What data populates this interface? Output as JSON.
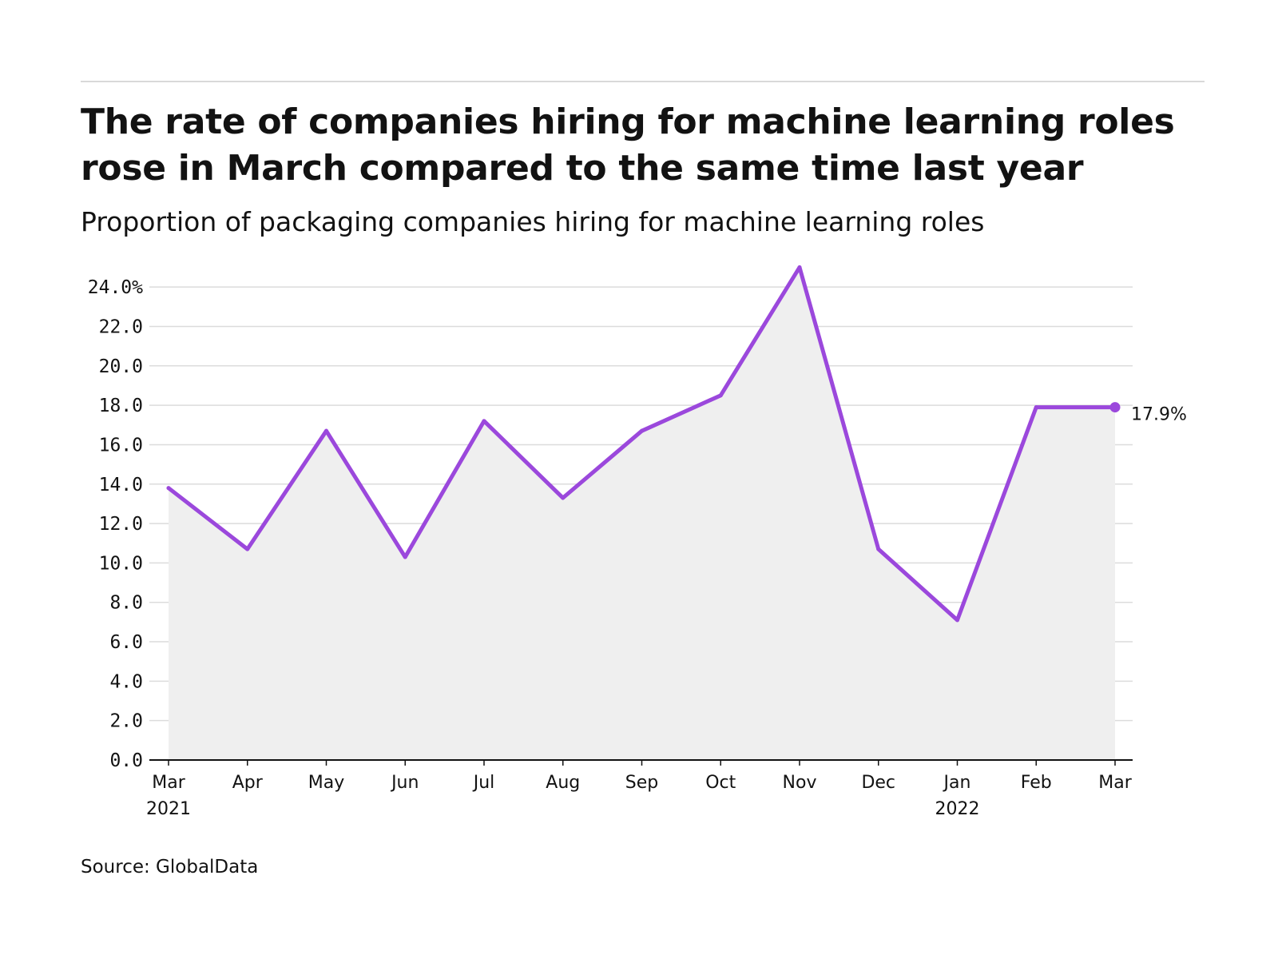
{
  "header": {
    "title": "The rate of companies hiring for machine learning roles rose in March compared to the same time last year",
    "subtitle": "Proportion of packaging companies hiring for machine learning roles"
  },
  "footer": {
    "source": "Source: GlobalData"
  },
  "colors": {
    "line": "#9b48dc",
    "area": "#efefef",
    "grid": "#dcdcdc",
    "axis": "#121212"
  },
  "chart_data": {
    "type": "area",
    "title": "The rate of companies hiring for machine learning roles rose in March compared to the same time last year",
    "subtitle": "Proportion of packaging companies hiring for machine learning roles",
    "xlabel": "",
    "ylabel": "",
    "categories": [
      "Mar 2021",
      "Apr",
      "May",
      "Jun",
      "Jul",
      "Aug",
      "Sep",
      "Oct",
      "Nov",
      "Dec",
      "Jan 2022",
      "Feb",
      "Mar"
    ],
    "x_tick_labels": [
      [
        "Mar",
        "2021"
      ],
      [
        "Apr"
      ],
      [
        "May"
      ],
      [
        "Jun"
      ],
      [
        "Jul"
      ],
      [
        "Aug"
      ],
      [
        "Sep"
      ],
      [
        "Oct"
      ],
      [
        "Nov"
      ],
      [
        "Dec"
      ],
      [
        "Jan",
        "2022"
      ],
      [
        "Feb"
      ],
      [
        "Mar"
      ]
    ],
    "values": [
      13.8,
      10.7,
      16.7,
      10.3,
      17.2,
      13.3,
      16.7,
      18.5,
      25.0,
      10.7,
      7.1,
      17.9,
      17.9
    ],
    "ylim": [
      0,
      24
    ],
    "y_ticks": [
      0,
      2,
      4,
      6,
      8,
      10,
      12,
      14,
      16,
      18,
      20,
      22,
      24
    ],
    "y_tick_labels": [
      "0.0",
      "2.0",
      "4.0",
      "6.0",
      "8.0",
      "10.0",
      "12.0",
      "14.0",
      "16.0",
      "18.0",
      "20.0",
      "22.0",
      "24.0%"
    ],
    "grid": true,
    "end_label": "17.9%"
  }
}
